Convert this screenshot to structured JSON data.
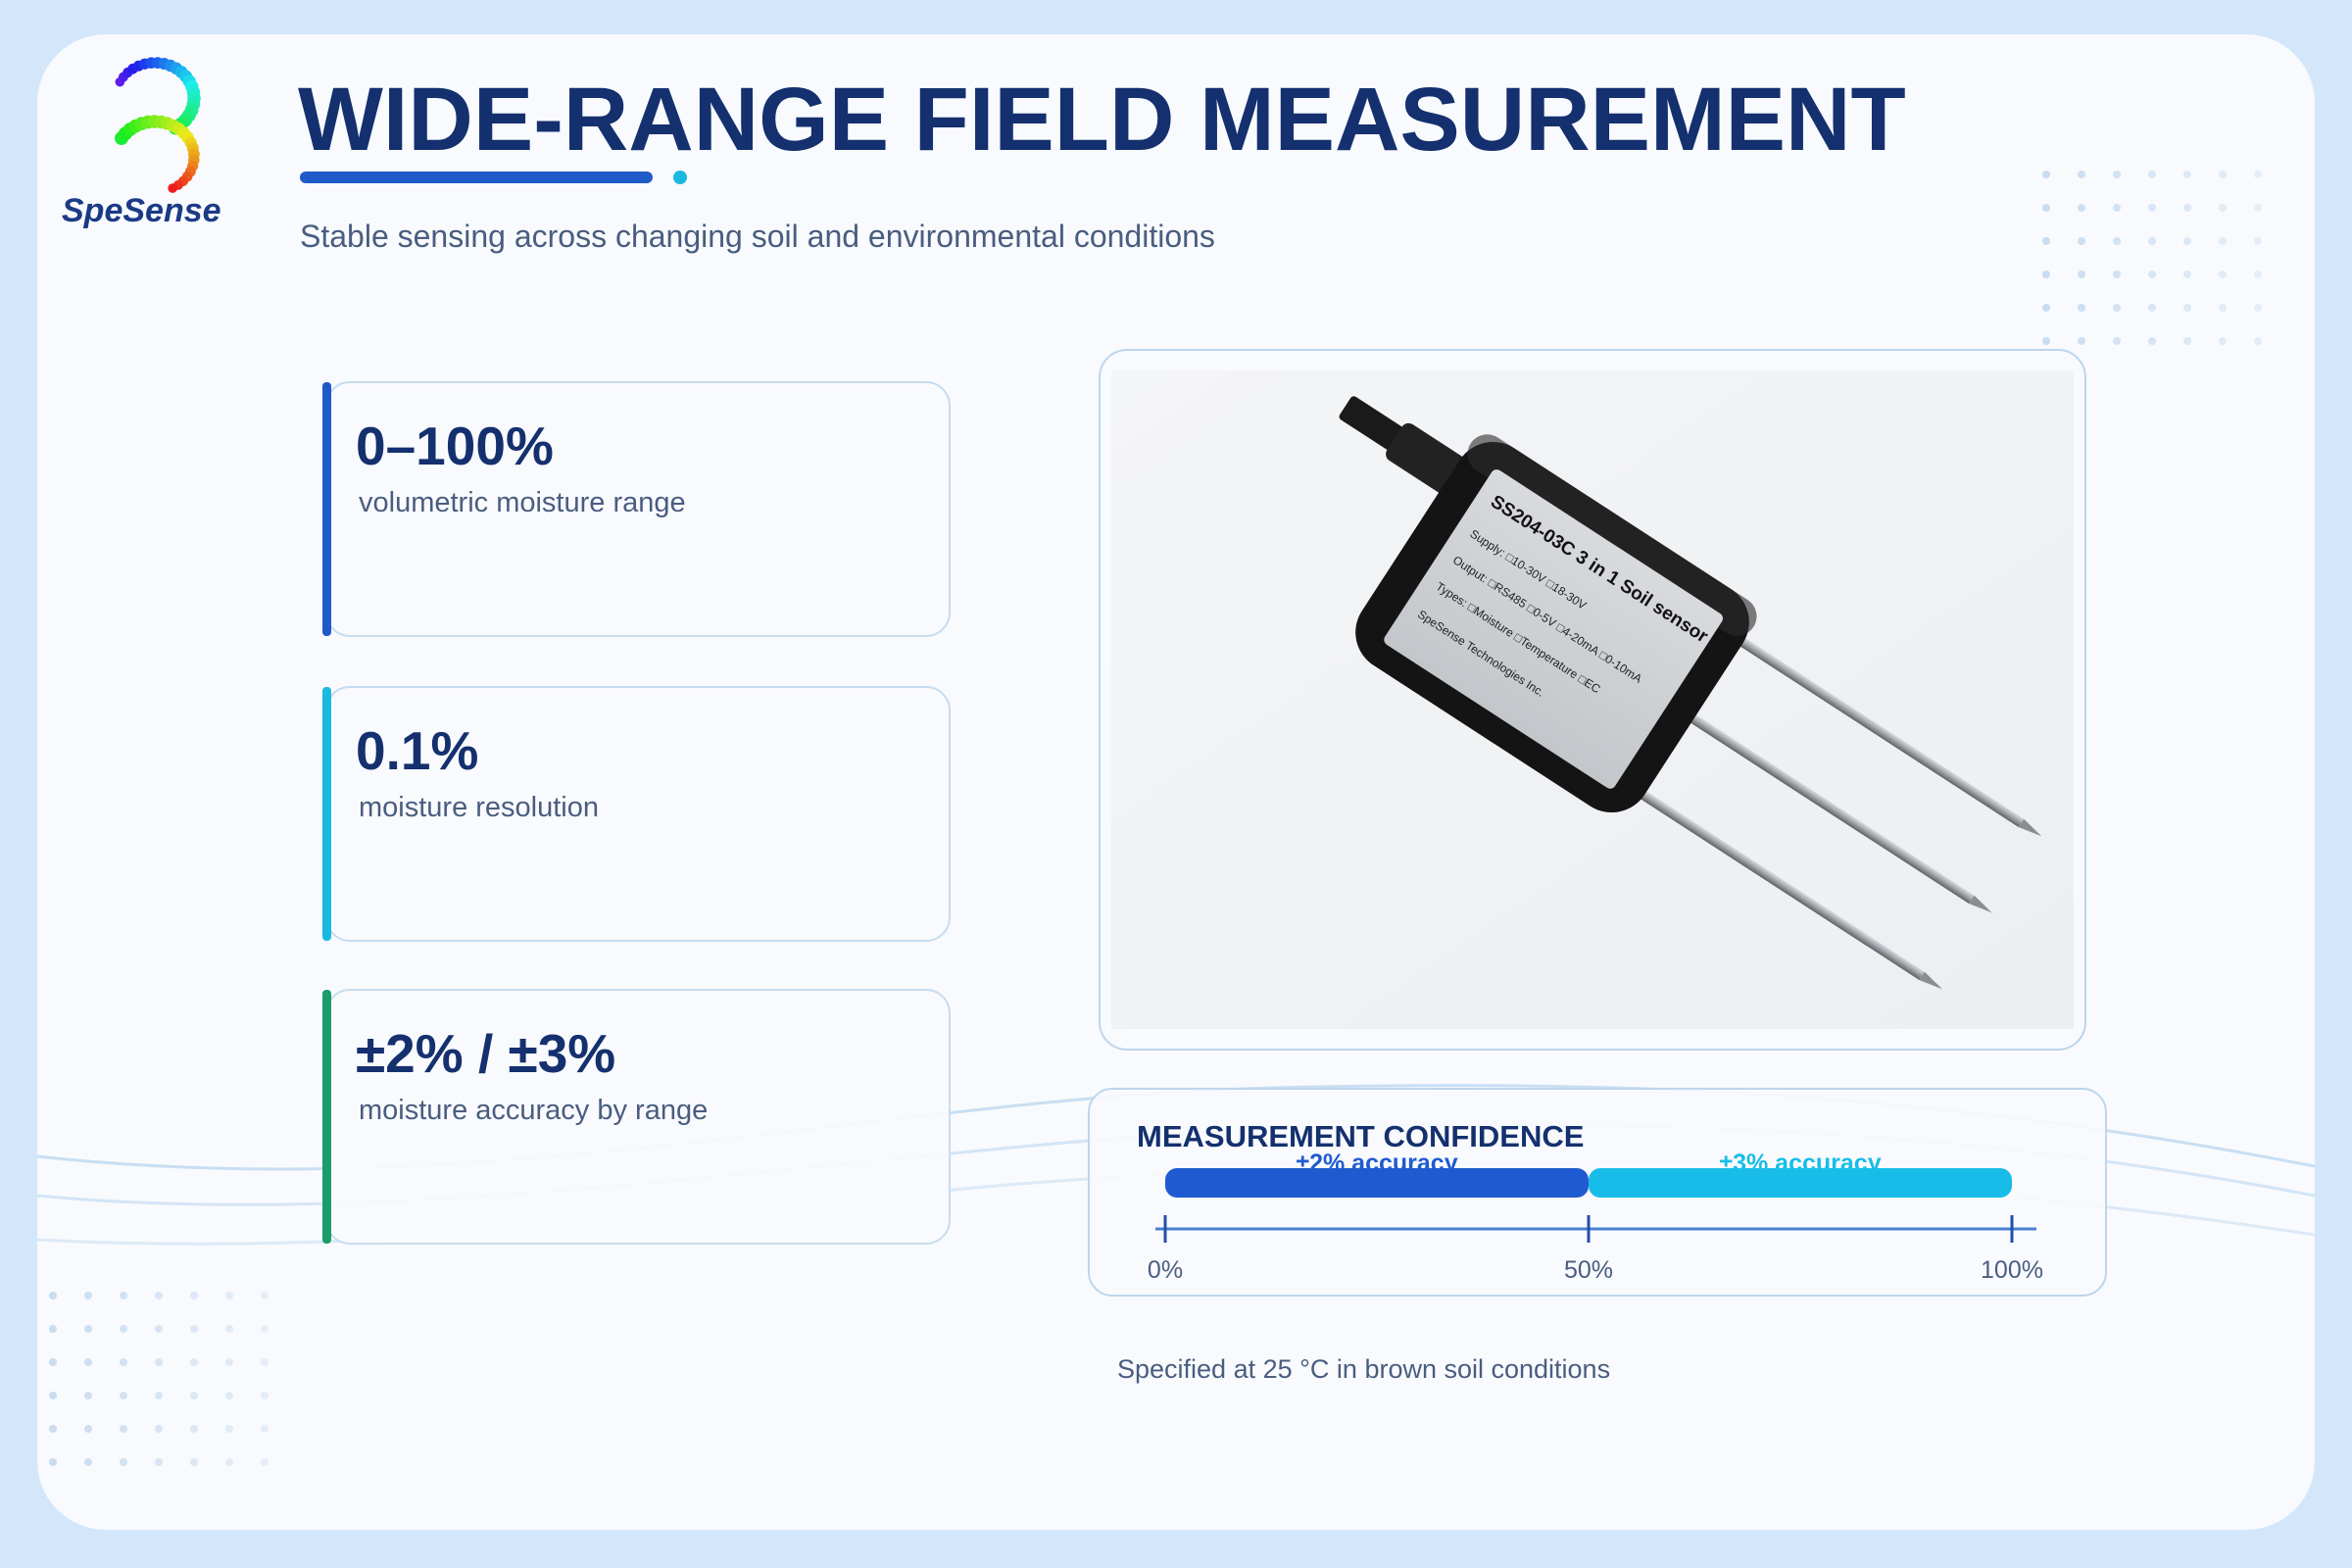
{
  "brand": {
    "name": "SpeSense"
  },
  "header": {
    "title": "WIDE-RANGE FIELD MEASUREMENT",
    "subtitle": "Stable sensing across changing soil and environmental conditions"
  },
  "stats": [
    {
      "value": "0–100%",
      "label": "volumetric moisture range",
      "accent": "#1f5bc8"
    },
    {
      "value": "0.1%",
      "label": "moisture resolution",
      "accent": "#1bb8e0"
    },
    {
      "value": "±2% / ±3%",
      "label": "moisture accuracy by range",
      "accent": "#1a9c6c"
    }
  ],
  "product_label": {
    "model": "SS204-03C 3 in 1 Soil sensor",
    "lines": [
      "Supply:   □10-30V   □18-30V",
      "Output:   □RS485   □0-5V   □4-20mA   □0-10mA",
      "Types:   □Moisture   □Temperature   □EC"
    ],
    "maker": "SpeSense Technologies Inc."
  },
  "confidence": {
    "title": "MEASUREMENT CONFIDENCE",
    "xlim": [
      0,
      100
    ],
    "xticks": [
      {
        "value": 0,
        "label": "0%"
      },
      {
        "value": 50,
        "label": "50%"
      },
      {
        "value": 100,
        "label": "100%"
      }
    ],
    "segments": [
      {
        "label": "±2% accuracy",
        "start": 0,
        "end": 50,
        "color": "#1f5bd0"
      },
      {
        "label": "±3% accuracy",
        "start": 50,
        "end": 100,
        "color": "#17bde8"
      }
    ]
  },
  "note": "Specified at 25 °C in brown soil conditions"
}
